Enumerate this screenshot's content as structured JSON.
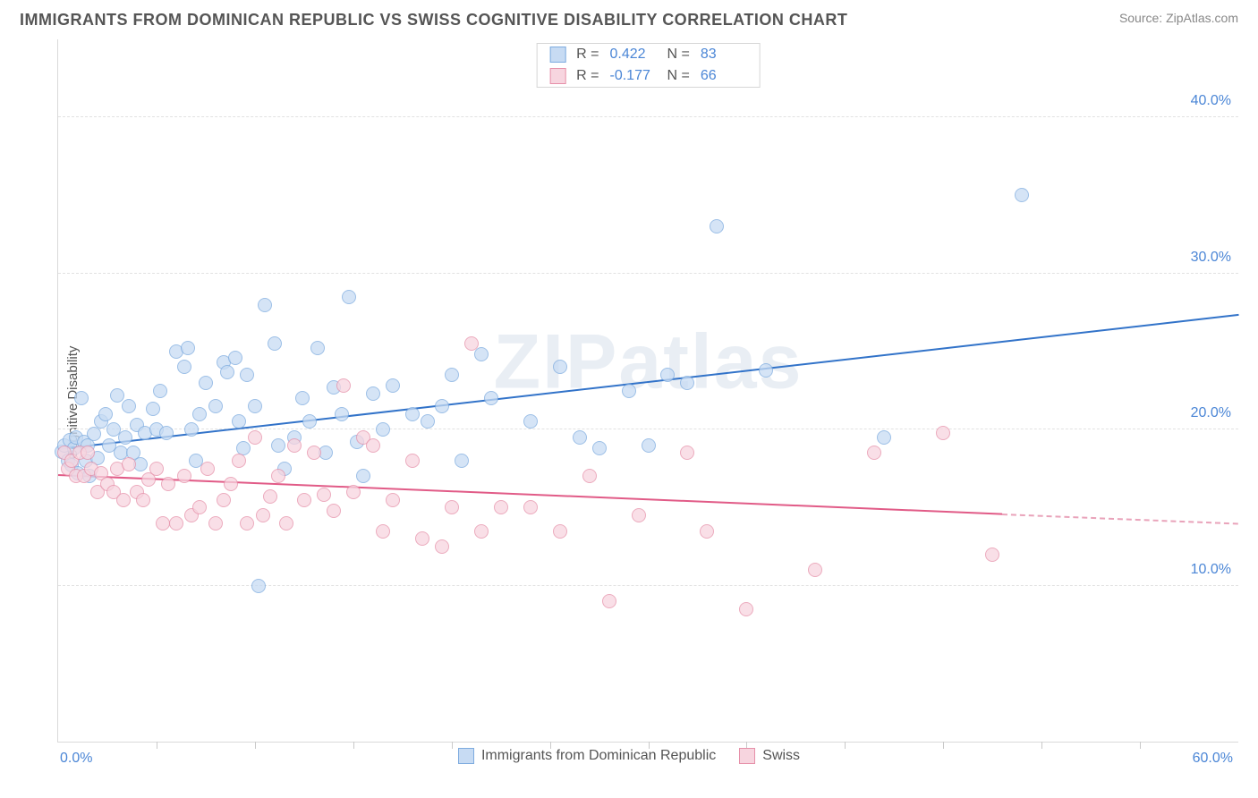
{
  "header": {
    "title": "IMMIGRANTS FROM DOMINICAN REPUBLIC VS SWISS COGNITIVE DISABILITY CORRELATION CHART",
    "source": "Source: ZipAtlas.com"
  },
  "watermark": "ZIPatlas",
  "chart": {
    "type": "scatter",
    "y_label": "Cognitive Disability",
    "xlim": [
      0,
      60
    ],
    "ylim": [
      0,
      45
    ],
    "x_ticks_minor": [
      5,
      10,
      15,
      20,
      25,
      30,
      35,
      40,
      45,
      50,
      55
    ],
    "x_tick_labels": [
      {
        "x": 0,
        "label": "0.0%",
        "align": "left"
      },
      {
        "x": 60,
        "label": "60.0%",
        "align": "right"
      }
    ],
    "y_gridlines": [
      {
        "y": 10,
        "label": "10.0%"
      },
      {
        "y": 20,
        "label": "20.0%"
      },
      {
        "y": 30,
        "label": "30.0%"
      },
      {
        "y": 40,
        "label": "40.0%"
      }
    ],
    "background_color": "#ffffff",
    "grid_color": "#e2e2e2",
    "axis_color": "#d9d9d9",
    "tick_label_color": "#4b86d6",
    "marker_radius": 8,
    "marker_border_width": 1,
    "series": [
      {
        "name": "Immigrants from Dominican Republic",
        "fill_color": "#c7dbf3",
        "border_color": "#7dabdf",
        "fill_opacity": 0.75,
        "R": "0.422",
        "N": "83",
        "trend": {
          "x1": 0,
          "y1": 18.7,
          "x2": 60,
          "y2": 27.3,
          "color": "#3273c9",
          "width": 2
        },
        "points": [
          [
            0.2,
            18.6
          ],
          [
            0.3,
            19.0
          ],
          [
            0.5,
            18.0
          ],
          [
            0.6,
            19.3
          ],
          [
            0.7,
            17.7
          ],
          [
            0.8,
            18.8
          ],
          [
            0.9,
            19.5
          ],
          [
            1.0,
            17.2
          ],
          [
            1.2,
            22.0
          ],
          [
            1.3,
            19.2
          ],
          [
            1.4,
            18.0
          ],
          [
            1.5,
            19.0
          ],
          [
            1.6,
            17.0
          ],
          [
            1.8,
            19.7
          ],
          [
            2.0,
            18.2
          ],
          [
            2.2,
            20.5
          ],
          [
            2.4,
            21.0
          ],
          [
            2.6,
            19.0
          ],
          [
            2.8,
            20.0
          ],
          [
            3.0,
            22.2
          ],
          [
            3.2,
            18.5
          ],
          [
            3.4,
            19.5
          ],
          [
            3.6,
            21.5
          ],
          [
            3.8,
            18.5
          ],
          [
            4.0,
            20.3
          ],
          [
            4.2,
            17.8
          ],
          [
            4.4,
            19.8
          ],
          [
            4.8,
            21.3
          ],
          [
            5.0,
            20.0
          ],
          [
            5.2,
            22.5
          ],
          [
            5.5,
            19.8
          ],
          [
            6.0,
            25.0
          ],
          [
            6.4,
            24.0
          ],
          [
            6.6,
            25.2
          ],
          [
            6.8,
            20.0
          ],
          [
            7.0,
            18.0
          ],
          [
            7.2,
            21.0
          ],
          [
            7.5,
            23.0
          ],
          [
            8.0,
            21.5
          ],
          [
            8.4,
            24.3
          ],
          [
            8.6,
            23.7
          ],
          [
            9.0,
            24.6
          ],
          [
            9.2,
            20.5
          ],
          [
            9.4,
            18.8
          ],
          [
            9.6,
            23.5
          ],
          [
            10.0,
            21.5
          ],
          [
            10.2,
            10.0
          ],
          [
            10.5,
            28.0
          ],
          [
            11.0,
            25.5
          ],
          [
            11.2,
            19.0
          ],
          [
            11.5,
            17.5
          ],
          [
            12.0,
            19.5
          ],
          [
            12.4,
            22.0
          ],
          [
            12.8,
            20.5
          ],
          [
            13.2,
            25.2
          ],
          [
            13.6,
            18.5
          ],
          [
            14.0,
            22.7
          ],
          [
            14.4,
            21.0
          ],
          [
            14.8,
            28.5
          ],
          [
            15.2,
            19.2
          ],
          [
            15.5,
            17.0
          ],
          [
            16.0,
            22.3
          ],
          [
            16.5,
            20.0
          ],
          [
            17.0,
            22.8
          ],
          [
            18.0,
            21.0
          ],
          [
            18.8,
            20.5
          ],
          [
            19.5,
            21.5
          ],
          [
            20.0,
            23.5
          ],
          [
            20.5,
            18.0
          ],
          [
            21.5,
            24.8
          ],
          [
            22.0,
            22.0
          ],
          [
            24.0,
            20.5
          ],
          [
            25.5,
            24.0
          ],
          [
            26.5,
            19.5
          ],
          [
            27.5,
            18.8
          ],
          [
            29.0,
            22.5
          ],
          [
            30.0,
            19.0
          ],
          [
            31.0,
            23.5
          ],
          [
            32.0,
            23.0
          ],
          [
            33.5,
            33.0
          ],
          [
            36.0,
            23.8
          ],
          [
            42.0,
            19.5
          ],
          [
            49.0,
            35.0
          ]
        ]
      },
      {
        "name": "Swiss",
        "fill_color": "#f7d5df",
        "border_color": "#e690a9",
        "fill_opacity": 0.75,
        "R": "-0.177",
        "N": "66",
        "trend": {
          "x1": 0,
          "y1": 17.0,
          "x2": 48,
          "y2": 14.5,
          "color": "#e15b87",
          "width": 2
        },
        "trend_dash": {
          "x1": 48,
          "y1": 14.5,
          "x2": 60,
          "y2": 13.9,
          "color": "#e9a3ba",
          "width": 2
        },
        "points": [
          [
            0.3,
            18.5
          ],
          [
            0.5,
            17.5
          ],
          [
            0.7,
            18.0
          ],
          [
            0.9,
            17.0
          ],
          [
            1.1,
            18.5
          ],
          [
            1.3,
            17.0
          ],
          [
            1.5,
            18.5
          ],
          [
            1.7,
            17.5
          ],
          [
            2.0,
            16.0
          ],
          [
            2.2,
            17.2
          ],
          [
            2.5,
            16.5
          ],
          [
            2.8,
            16.0
          ],
          [
            3.0,
            17.5
          ],
          [
            3.3,
            15.5
          ],
          [
            3.6,
            17.8
          ],
          [
            4.0,
            16.0
          ],
          [
            4.3,
            15.5
          ],
          [
            4.6,
            16.8
          ],
          [
            5.0,
            17.5
          ],
          [
            5.3,
            14.0
          ],
          [
            5.6,
            16.5
          ],
          [
            6.0,
            14.0
          ],
          [
            6.4,
            17.0
          ],
          [
            6.8,
            14.5
          ],
          [
            7.2,
            15.0
          ],
          [
            7.6,
            17.5
          ],
          [
            8.0,
            14.0
          ],
          [
            8.4,
            15.5
          ],
          [
            8.8,
            16.5
          ],
          [
            9.2,
            18.0
          ],
          [
            9.6,
            14.0
          ],
          [
            10.0,
            19.5
          ],
          [
            10.4,
            14.5
          ],
          [
            10.8,
            15.7
          ],
          [
            11.2,
            17.0
          ],
          [
            11.6,
            14.0
          ],
          [
            12.0,
            19.0
          ],
          [
            12.5,
            15.5
          ],
          [
            13.0,
            18.5
          ],
          [
            13.5,
            15.8
          ],
          [
            14.0,
            14.8
          ],
          [
            14.5,
            22.8
          ],
          [
            15.0,
            16.0
          ],
          [
            15.5,
            19.5
          ],
          [
            16.0,
            19.0
          ],
          [
            16.5,
            13.5
          ],
          [
            17.0,
            15.5
          ],
          [
            18.0,
            18.0
          ],
          [
            18.5,
            13.0
          ],
          [
            19.5,
            12.5
          ],
          [
            20.0,
            15.0
          ],
          [
            21.0,
            25.5
          ],
          [
            21.5,
            13.5
          ],
          [
            22.5,
            15.0
          ],
          [
            24.0,
            15.0
          ],
          [
            25.5,
            13.5
          ],
          [
            27.0,
            17.0
          ],
          [
            28.0,
            9.0
          ],
          [
            29.5,
            14.5
          ],
          [
            32.0,
            18.5
          ],
          [
            33.0,
            13.5
          ],
          [
            35.0,
            8.5
          ],
          [
            38.5,
            11.0
          ],
          [
            41.5,
            18.5
          ],
          [
            45.0,
            19.8
          ],
          [
            47.5,
            12.0
          ]
        ]
      }
    ]
  },
  "bottom_legend": [
    {
      "label": "Immigrants from Dominican Republic",
      "fill": "#c7dbf3",
      "border": "#7dabdf"
    },
    {
      "label": "Swiss",
      "fill": "#f7d5df",
      "border": "#e690a9"
    }
  ]
}
